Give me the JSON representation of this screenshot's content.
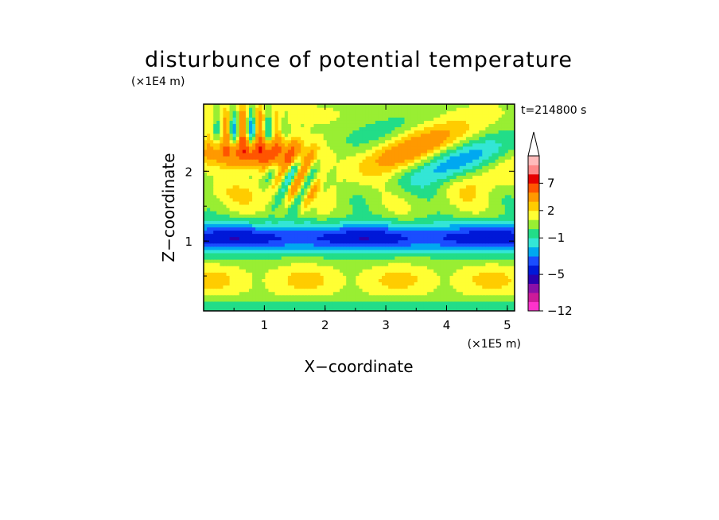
{
  "chart_data": {
    "type": "heatmap",
    "title": "disturbunce of potential temperature",
    "xlabel": "X−coordinate",
    "ylabel": "Z−coordinate",
    "x_unit": "(×1E5 m)",
    "y_unit": "(×1E4 m)",
    "time_label": "t=214800 s",
    "xlim": [
      0,
      5.12
    ],
    "ylim": [
      0,
      2.96
    ],
    "x_ticks": [
      "1",
      "2",
      "3",
      "4",
      "5"
    ],
    "y_ticks": [
      "1",
      "2"
    ],
    "colorbar": {
      "tick_labels": [
        "7",
        "2",
        "−1",
        "−5",
        "−12"
      ],
      "extend": "max",
      "levels": [
        -12,
        -10,
        -8,
        -6,
        -5,
        -4,
        -3,
        -2,
        -1,
        0,
        1,
        2,
        3,
        5,
        7,
        8,
        9,
        10
      ],
      "colors": [
        "#ff33cc",
        "#cc1a99",
        "#8a10a8",
        "#2a00b0",
        "#0018d8",
        "#1a4dff",
        "#00a8f0",
        "#33e6d6",
        "#22dd88",
        "#99ee33",
        "#ffff33",
        "#ffcc00",
        "#ff9900",
        "#ff5500",
        "#e60000",
        "#ff8888",
        "#ffbbbb"
      ]
    },
    "field": {
      "description_rows": "z from 0 to 2.96 (x1E4 m), values in K",
      "features": [
        {
          "z_range": [
            0.8,
            1.3
          ],
          "value_approx": -5
        },
        {
          "z_range": [
            1.8,
            2.7
          ],
          "x_range": [
            0,
            1.8
          ],
          "value_approx": 5
        },
        {
          "z_range": [
            2.0,
            2.8
          ],
          "x_range": [
            2.5,
            5.0
          ],
          "value_approx": -4
        }
      ]
    }
  }
}
